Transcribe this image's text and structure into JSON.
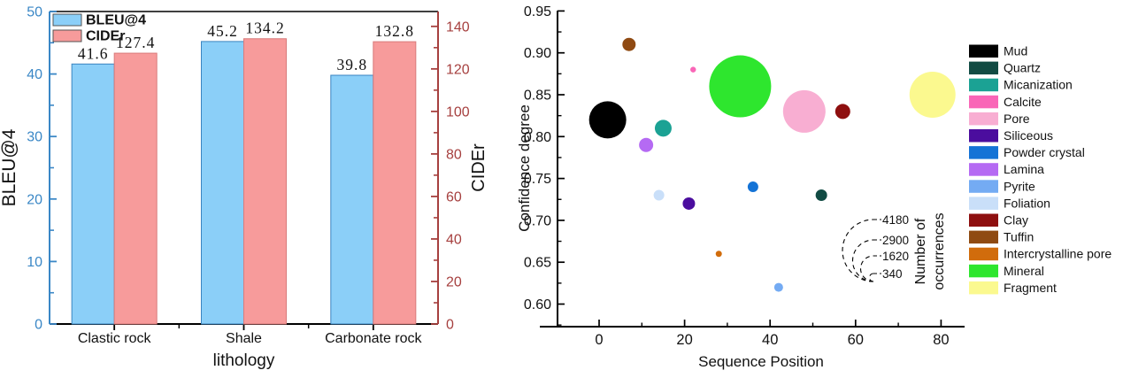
{
  "figure": {
    "background": "#ffffff"
  },
  "chart_data": [
    {
      "type": "bar",
      "title": "",
      "categories": [
        "Clastic rock",
        "Shale",
        "Carbonate rock"
      ],
      "series": [
        {
          "name": "BLEU@4",
          "axis": "left",
          "values": [
            41.6,
            45.2,
            39.8
          ],
          "fill": "#8BCFF8",
          "edge": "#3A84C0"
        },
        {
          "name": "CIDEr",
          "axis": "right",
          "values": [
            127.4,
            134.2,
            132.8
          ],
          "fill": "#F79B9B",
          "edge": "#D97B7B"
        }
      ],
      "value_labels": [
        [
          "41.6",
          "45.2",
          "39.8"
        ],
        [
          "127.4",
          "134.2",
          "132.8"
        ]
      ],
      "xlabel": "lithology",
      "ylabel_left": "BLEU@4",
      "ylabel_right": "CIDEr",
      "axis_left": {
        "min": 0,
        "max": 50,
        "ticks": [
          0,
          10,
          20,
          30,
          40,
          50
        ],
        "minors": [
          5,
          15,
          25,
          35,
          45
        ],
        "color": "#3A87C6"
      },
      "axis_right": {
        "min": 0,
        "max": 147,
        "ticks": [
          0,
          20,
          40,
          60,
          80,
          100,
          120,
          140
        ],
        "minors": [
          10,
          30,
          50,
          70,
          90,
          110,
          130
        ],
        "color": "#A6403F"
      },
      "legend": {
        "entries": [
          "BLEU@4",
          "CIDEr"
        ]
      },
      "grid": false,
      "legend_position": "top-left-inside"
    },
    {
      "type": "scatter",
      "subtype": "bubble",
      "title": "",
      "xlabel": "Sequence Position",
      "ylabel": "Confidence degree",
      "xlim": [
        -15,
        87
      ],
      "ylim": [
        0.573,
        0.951
      ],
      "x_ticks": [
        0,
        20,
        40,
        60,
        80
      ],
      "x_minors": [
        10,
        30,
        50,
        70
      ],
      "y_ticks": [
        0.6,
        0.65,
        0.7,
        0.75,
        0.8,
        0.85,
        0.9,
        0.95
      ],
      "grid": false,
      "legend_position": "right-outside",
      "points": [
        {
          "name": "Mud",
          "x": 2,
          "y": 0.82,
          "r": 21,
          "color": "#000000"
        },
        {
          "name": "Quartz",
          "x": 52,
          "y": 0.73,
          "r": 6.5,
          "color": "#114B43"
        },
        {
          "name": "Micanization",
          "x": 15,
          "y": 0.81,
          "r": 9.5,
          "color": "#1BA294"
        },
        {
          "name": "Calcite",
          "x": 22,
          "y": 0.88,
          "r": 3.2,
          "color": "#F966B7"
        },
        {
          "name": "Pore",
          "x": 48,
          "y": 0.83,
          "r": 24,
          "color": "#F8AED2"
        },
        {
          "name": "Siliceous",
          "x": 21,
          "y": 0.72,
          "r": 7,
          "color": "#4B0D9E"
        },
        {
          "name": "Powder crystal",
          "x": 36,
          "y": 0.74,
          "r": 6,
          "color": "#1473D6"
        },
        {
          "name": "Lamina",
          "x": 11,
          "y": 0.79,
          "r": 8,
          "color": "#B56AF3"
        },
        {
          "name": "Pyrite",
          "x": 42,
          "y": 0.62,
          "r": 5,
          "color": "#74ABF3"
        },
        {
          "name": "Foliation",
          "x": 14,
          "y": 0.73,
          "r": 6,
          "color": "#C9DFF9"
        },
        {
          "name": "Clay",
          "x": 57,
          "y": 0.83,
          "r": 8.5,
          "color": "#8E0F0F"
        },
        {
          "name": "Tuffin",
          "x": 7,
          "y": 0.91,
          "r": 7.5,
          "color": "#8F4A12"
        },
        {
          "name": "Intercrystalline pore",
          "x": 28,
          "y": 0.66,
          "r": 3.5,
          "color": "#D16C0C"
        },
        {
          "name": "Mineral",
          "x": 33,
          "y": 0.86,
          "r": 35,
          "color": "#2EE62E"
        },
        {
          "name": "Fragment",
          "x": 78,
          "y": 0.85,
          "r": 26,
          "color": "#FBF98F"
        }
      ],
      "size_legend": {
        "title_lines": [
          "Number of",
          "occurrences"
        ],
        "entries": [
          {
            "value": "4180",
            "r": 35
          },
          {
            "value": "2900",
            "r": 23.5
          },
          {
            "value": "1620",
            "r": 14.5
          },
          {
            "value": "340",
            "r": 4.5
          }
        ]
      }
    }
  ]
}
